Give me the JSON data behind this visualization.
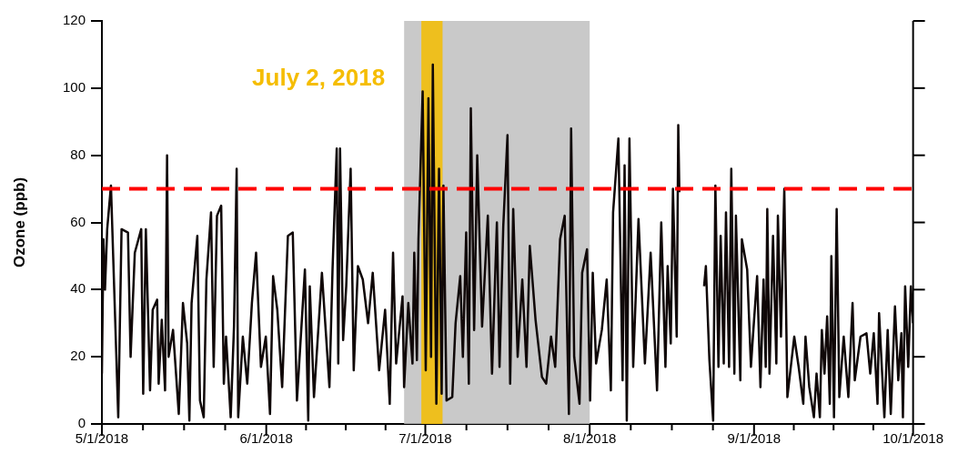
{
  "chart_data": {
    "type": "line",
    "ylabel": "Ozone (ppb)",
    "xlim": [
      "2018-05-01",
      "2018-10-01"
    ],
    "xticks": [
      {
        "value": "2018-05-01",
        "label": "5/1/2018"
      },
      {
        "value": "2018-05-08T18:00",
        "label": null
      },
      {
        "value": "2018-05-16T12:00",
        "label": null
      },
      {
        "value": "2018-05-24T06:00",
        "label": null
      },
      {
        "value": "2018-06-01",
        "label": "6/1/2018"
      },
      {
        "value": "2018-06-08T12:00",
        "label": null
      },
      {
        "value": "2018-06-16",
        "label": null
      },
      {
        "value": "2018-06-23T12:00",
        "label": null
      },
      {
        "value": "2018-07-01",
        "label": "7/1/2018"
      },
      {
        "value": "2018-07-08T18:00",
        "label": null
      },
      {
        "value": "2018-07-16T12:00",
        "label": null
      },
      {
        "value": "2018-07-24T06:00",
        "label": null
      },
      {
        "value": "2018-08-01",
        "label": "8/1/2018"
      },
      {
        "value": "2018-08-08T18:00",
        "label": null
      },
      {
        "value": "2018-08-16T12:00",
        "label": null
      },
      {
        "value": "2018-08-24T06:00",
        "label": null
      },
      {
        "value": "2018-09-01",
        "label": "9/1/2018"
      },
      {
        "value": "2018-09-08T12:00",
        "label": null
      },
      {
        "value": "2018-09-16",
        "label": null
      },
      {
        "value": "2018-09-23T12:00",
        "label": null
      },
      {
        "value": "2018-10-01",
        "label": "10/1/2018"
      }
    ],
    "ylim": [
      0,
      120
    ],
    "yticks": [
      0,
      20,
      40,
      60,
      80,
      100,
      120
    ],
    "grid": false,
    "legend": false,
    "marker": "none",
    "line_style": "solid",
    "ref_lines": [
      {
        "axis": "y",
        "value": 70,
        "color": "#ff0000",
        "line_style": "dashed"
      }
    ],
    "bands": [
      {
        "axis": "x",
        "from": "2018-06-27",
        "to": "2018-08-01",
        "color": "#bfbfbf"
      },
      {
        "axis": "x",
        "from": "2018-06-30T06:00",
        "to": "2018-07-04T06:00",
        "label": "July 2, 2018",
        "color": "#f5bd00"
      }
    ],
    "series": [
      {
        "color": "#100808",
        "x": [
          "2018-05-01T00:00",
          "2018-05-01T07:00",
          "2018-05-01T14:00",
          "2018-05-02T00:00",
          "2018-05-02T17:00",
          "2018-05-04T02:00",
          "2018-05-04T17:00",
          "2018-05-05T22:00",
          "2018-05-06T10:00",
          "2018-05-07T05:00",
          "2018-05-08T10:00",
          "2018-05-08T19:00",
          "2018-05-09T07:00",
          "2018-05-10T02:00",
          "2018-05-10T14:00",
          "2018-05-11T10:00",
          "2018-05-11T17:00",
          "2018-05-12T07:00",
          "2018-05-12T22:00",
          "2018-05-13T07:00",
          "2018-05-13T14:00",
          "2018-05-14T10:00",
          "2018-05-15T12:00",
          "2018-05-16T07:00",
          "2018-05-17T02:00",
          "2018-05-17T12:00",
          "2018-05-17T22:00",
          "2018-05-19T00:00",
          "2018-05-19T12:00",
          "2018-05-20T05:00",
          "2018-05-20T17:00",
          "2018-05-21T14:00",
          "2018-05-22T02:00",
          "2018-05-22T17:00",
          "2018-05-23T12:00",
          "2018-05-24T00:00",
          "2018-05-24T10:00",
          "2018-05-25T07:00",
          "2018-05-25T22:00",
          "2018-05-26T10:00",
          "2018-05-26T17:00",
          "2018-05-27T14:00",
          "2018-05-28T10:00",
          "2018-05-29T07:00",
          "2018-05-30T02:00",
          "2018-05-31T00:00",
          "2018-05-31T22:00",
          "2018-06-01T17:00",
          "2018-06-02T07:00",
          "2018-06-03T02:00",
          "2018-06-04T00:00",
          "2018-06-05T02:00",
          "2018-06-06T00:00",
          "2018-06-06T19:00",
          "2018-06-08T07:00",
          "2018-06-08T22:00",
          "2018-06-09T05:00",
          "2018-06-10T00:00",
          "2018-06-11T12:00",
          "2018-06-12T22:00",
          "2018-06-13T12:00",
          "2018-06-14T07:00",
          "2018-06-14T14:00",
          "2018-06-14T22:00",
          "2018-06-15T12:00",
          "2018-06-16T02:00",
          "2018-06-16T22:00",
          "2018-06-17T12:00",
          "2018-06-18T07:00",
          "2018-06-19T05:00",
          "2018-06-20T05:00",
          "2018-06-21T02:00",
          "2018-06-22T07:00",
          "2018-06-23T10:00",
          "2018-06-24T07:00",
          "2018-06-24T22:00",
          "2018-06-25T12:00",
          "2018-06-26T17:00",
          "2018-06-27T00:00",
          "2018-06-27T19:00",
          "2018-06-28T14:00",
          "2018-06-28T22:00",
          "2018-06-29T10:00",
          "2018-06-29T17:00",
          "2018-06-30T12:00",
          "2018-07-01T02:00",
          "2018-07-01T14:00",
          "2018-07-02T02:00",
          "2018-07-02T10:00",
          "2018-07-03T02:00",
          "2018-07-03T14:00",
          "2018-07-04T02:00",
          "2018-07-04T10:00",
          "2018-07-05T00:00",
          "2018-07-06T02:00",
          "2018-07-06T17:00",
          "2018-07-07T14:00",
          "2018-07-08T02:00",
          "2018-07-08T17:00",
          "2018-07-09T05:00",
          "2018-07-09T14:00",
          "2018-07-10T05:00",
          "2018-07-10T19:00",
          "2018-07-11T17:00",
          "2018-07-12T19:00",
          "2018-07-13T14:00",
          "2018-07-14T12:00",
          "2018-07-15T00:00",
          "2018-07-15T17:00",
          "2018-07-16T12:00",
          "2018-07-17T00:00",
          "2018-07-17T14:00",
          "2018-07-18T10:00",
          "2018-07-19T07:00",
          "2018-07-20T02:00",
          "2018-07-20T17:00",
          "2018-07-21T19:00",
          "2018-07-23T00:00",
          "2018-07-23T19:00",
          "2018-07-24T17:00",
          "2018-07-25T12:00",
          "2018-07-26T10:00",
          "2018-07-27T07:00",
          "2018-07-28T02:00",
          "2018-07-28T12:00",
          "2018-07-29T02:00",
          "2018-07-30T02:00",
          "2018-07-30T14:00",
          "2018-07-31T12:00",
          "2018-08-01T02:00",
          "2018-08-01T14:00",
          "2018-08-02T05:00",
          "2018-08-03T07:00",
          "2018-08-04T05:00",
          "2018-08-05T00:00",
          "2018-08-05T10:00",
          "2018-08-06T10:00",
          "2018-08-07T05:00",
          "2018-08-07T14:00",
          "2018-08-08T00:00",
          "2018-08-08T12:00",
          "2018-08-09T05:00",
          "2018-08-10T05:00",
          "2018-08-11T10:00",
          "2018-08-12T12:00",
          "2018-08-13T17:00",
          "2018-08-14T12:00",
          "2018-08-15T07:00",
          "2018-08-15T17:00",
          "2018-08-16T07:00",
          "2018-08-16T17:00",
          "2018-08-17T10:00",
          "2018-08-17T17:00",
          "2018-08-17T22:00",
          "2018-08-20T00:00",
          "2018-08-22T14:00",
          "2018-08-22T22:00",
          "2018-08-23T14:00",
          "2018-08-24T07:00",
          "2018-08-24T17:00",
          "2018-08-25T07:00",
          "2018-08-25T17:00",
          "2018-08-26T07:00",
          "2018-08-26T17:00",
          "2018-08-27T07:00",
          "2018-08-27T17:00",
          "2018-08-28T07:00",
          "2018-08-28T14:00",
          "2018-08-29T10:00",
          "2018-08-29T17:00",
          "2018-08-30T17:00",
          "2018-08-31T10:00",
          "2018-08-31T19:00",
          "2018-09-01T14:00",
          "2018-09-02T05:00",
          "2018-09-02T19:00",
          "2018-09-03T05:00",
          "2018-09-03T12:00",
          "2018-09-03T22:00",
          "2018-09-04T14:00",
          "2018-09-05T05:00",
          "2018-09-05T12:00",
          "2018-09-06T02:00",
          "2018-09-06T17:00",
          "2018-09-07T07:00",
          "2018-09-08T14:00",
          "2018-09-09T10:00",
          "2018-09-10T07:00",
          "2018-09-10T17:00",
          "2018-09-11T10:00",
          "2018-09-12T07:00",
          "2018-09-12T19:00",
          "2018-09-13T10:00",
          "2018-09-13T19:00",
          "2018-09-14T07:00",
          "2018-09-14T19:00",
          "2018-09-15T07:00",
          "2018-09-15T14:00",
          "2018-09-16T02:00",
          "2018-09-16T14:00",
          "2018-09-17T02:00",
          "2018-09-17T22:00",
          "2018-09-18T19:00",
          "2018-09-19T14:00",
          "2018-09-20T00:00",
          "2018-09-21T02:00",
          "2018-09-22T05:00",
          "2018-09-22T22:00",
          "2018-09-23T14:00",
          "2018-09-24T07:00",
          "2018-09-24T14:00",
          "2018-09-25T14:00",
          "2018-09-26T05:00",
          "2018-09-26T19:00",
          "2018-09-27T14:00",
          "2018-09-28T05:00",
          "2018-09-28T19:00",
          "2018-09-29T02:00",
          "2018-09-29T12:00",
          "2018-09-30T02:00",
          "2018-09-30T14:00",
          "2018-10-01T00:00"
        ],
        "values": [
          15,
          55,
          40,
          58,
          71,
          2,
          58,
          57,
          20,
          51,
          58,
          9,
          58,
          10,
          34,
          37,
          12,
          31,
          10,
          80,
          20,
          28,
          3,
          36,
          24,
          1,
          36,
          56,
          7,
          2,
          43,
          63,
          17,
          62,
          65,
          12,
          26,
          2,
          29,
          76,
          2,
          26,
          12,
          36,
          51,
          17,
          26,
          3,
          44,
          34,
          11,
          56,
          57,
          7,
          46,
          1,
          41,
          8,
          45,
          11,
          46,
          82,
          18,
          82,
          25,
          41,
          76,
          16,
          47,
          43,
          30,
          45,
          16,
          34,
          6,
          51,
          18,
          38,
          11,
          36,
          18,
          51,
          19,
          55,
          99,
          16,
          97,
          20,
          107,
          6,
          76,
          9,
          71,
          7,
          8,
          30,
          44,
          20,
          57,
          12,
          94,
          28,
          80,
          29,
          62,
          15,
          60,
          17,
          59,
          86,
          12,
          64,
          20,
          43,
          17,
          53,
          31,
          14,
          12,
          26,
          17,
          55,
          62,
          3,
          88,
          20,
          6,
          45,
          52,
          7,
          45,
          18,
          28,
          43,
          10,
          63,
          85,
          13,
          77,
          1,
          85,
          17,
          61,
          18,
          51,
          10,
          60,
          17,
          47,
          24,
          70,
          26,
          89,
          69,
          null,
          41,
          47,
          19,
          1,
          71,
          17,
          56,
          18,
          63,
          17,
          76,
          15,
          62,
          13,
          55,
          46,
          17,
          26,
          44,
          11,
          43,
          17,
          64,
          15,
          56,
          18,
          62,
          26,
          70,
          8,
          26,
          17,
          6,
          26,
          11,
          2,
          15,
          2,
          28,
          15,
          32,
          6,
          50,
          2,
          64,
          8,
          26,
          8,
          36,
          13,
          26,
          27,
          15,
          27,
          6,
          33,
          2,
          28,
          3,
          35,
          13,
          27,
          2,
          41,
          17,
          41,
          30
        ]
      }
    ]
  }
}
